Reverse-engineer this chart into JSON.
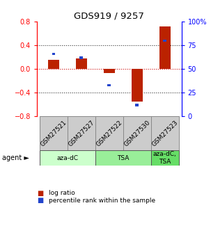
{
  "title": "GDS919 / 9257",
  "samples": [
    "GSM27521",
    "GSM27527",
    "GSM27522",
    "GSM27530",
    "GSM27523"
  ],
  "log_ratio": [
    0.15,
    0.18,
    -0.07,
    -0.55,
    0.72
  ],
  "percentile_rank": [
    66,
    62,
    33,
    12,
    80
  ],
  "agents": [
    {
      "label": "aza-dC",
      "span": [
        0,
        2
      ],
      "color": "#ccffcc"
    },
    {
      "label": "TSA",
      "span": [
        2,
        4
      ],
      "color": "#99ee99"
    },
    {
      "label": "aza-dC,\nTSA",
      "span": [
        4,
        5
      ],
      "color": "#66dd66"
    }
  ],
  "ylim_left": [
    -0.8,
    0.8
  ],
  "ylim_right": [
    0,
    100
  ],
  "yticks_left": [
    -0.8,
    -0.4,
    0.0,
    0.4,
    0.8
  ],
  "yticks_right": [
    0,
    25,
    50,
    75,
    100
  ],
  "bar_color_red": "#bb2200",
  "bar_color_blue": "#2244cc",
  "dotted_color": "#333333",
  "zero_line_color": "#cc0000",
  "legend_red": "log ratio",
  "legend_blue": "percentile rank within the sample",
  "agent_label": "agent",
  "sample_box_color": "#cccccc",
  "sample_box_edge": "#888888"
}
